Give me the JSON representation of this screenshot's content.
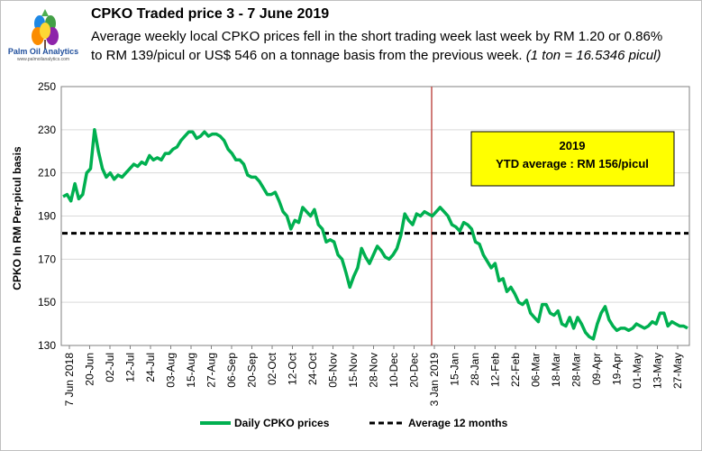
{
  "logo": {
    "name": "Palm Oil Analytics",
    "url": "www.palmoilanalytics.com"
  },
  "header": {
    "title": "CPKO Traded price 3 - 7 June 2019",
    "subtitle": "Average weekly local CPKO prices fell in the short trading week last week by RM 1.20 or 0.86% to RM 139/picul or US$ 546 on a tonnage basis from the previous week.",
    "note": "(1 ton = 16.5346 picul)"
  },
  "colors": {
    "series": "#00b050",
    "average": "#000000",
    "vline": "#c0504d",
    "box": "#ffff00"
  },
  "chart_data": {
    "type": "line",
    "title": "CPKO Traded price 3 - 7 June 2019",
    "ylabel": "CPKO In RM Per-picul basis",
    "xlabel": "",
    "ylim": [
      130,
      250
    ],
    "yticks": [
      130,
      150,
      170,
      190,
      210,
      230,
      250
    ],
    "grid": true,
    "legend_position": "bottom",
    "x_tick_labels": [
      "7 Jun 2018",
      "20-Jun",
      "02-Jul",
      "12-Jul",
      "24-Jul",
      "03-Aug",
      "15-Aug",
      "27-Aug",
      "06-Sep",
      "20-Sep",
      "02-Oct",
      "12-Oct",
      "24-Oct",
      "05-Nov",
      "15-Nov",
      "28-Nov",
      "10-Dec",
      "20-Dec",
      "3 Jan 2019",
      "15-Jan",
      "28-Jan",
      "12-Feb",
      "22-Feb",
      "06-Mar",
      "18-Mar",
      "28-Mar",
      "09-Apr",
      "19-Apr",
      "01-May",
      "13-May",
      "27-May"
    ],
    "series": [
      {
        "name": "Daily CPKO prices",
        "values": [
          199,
          200,
          197,
          205,
          198,
          200,
          210,
          212,
          230,
          220,
          212,
          208,
          210,
          207,
          209,
          208,
          210,
          212,
          214,
          213,
          215,
          214,
          218,
          216,
          217,
          216,
          219,
          219,
          221,
          222,
          225,
          227,
          229,
          229,
          226,
          227,
          229,
          227,
          228,
          228,
          227,
          225,
          221,
          219,
          216,
          216,
          214,
          209,
          208,
          208,
          206,
          203,
          200,
          200,
          201,
          197,
          192,
          190,
          184,
          188,
          187,
          194,
          192,
          190,
          193,
          186,
          184,
          178,
          179,
          178,
          172,
          170,
          164,
          157,
          162,
          166,
          175,
          171,
          168,
          172,
          176,
          174,
          171,
          170,
          172,
          175,
          181,
          191,
          188,
          186,
          191,
          190,
          192,
          191,
          190,
          192,
          194,
          192,
          190,
          186,
          185,
          183,
          187,
          186,
          184,
          178,
          177,
          172,
          169,
          166,
          168,
          160,
          161,
          155,
          157,
          154,
          150,
          149,
          151,
          145,
          143,
          141,
          149,
          149,
          145,
          144,
          146,
          140,
          139,
          143,
          138,
          143,
          140,
          136,
          134,
          133,
          140,
          145,
          148,
          142,
          139,
          137,
          138,
          138,
          137,
          138,
          140,
          139,
          138,
          139,
          141,
          140,
          145,
          145,
          139,
          141,
          140,
          139,
          139,
          138
        ]
      },
      {
        "name": "Average 12 months",
        "values": [
          182,
          182
        ]
      }
    ],
    "annotations": [
      {
        "type": "vertical_line",
        "x_label": "3 Jan 2019"
      },
      {
        "type": "box",
        "lines": [
          "2019",
          "YTD average : RM 156/picul"
        ]
      }
    ]
  }
}
